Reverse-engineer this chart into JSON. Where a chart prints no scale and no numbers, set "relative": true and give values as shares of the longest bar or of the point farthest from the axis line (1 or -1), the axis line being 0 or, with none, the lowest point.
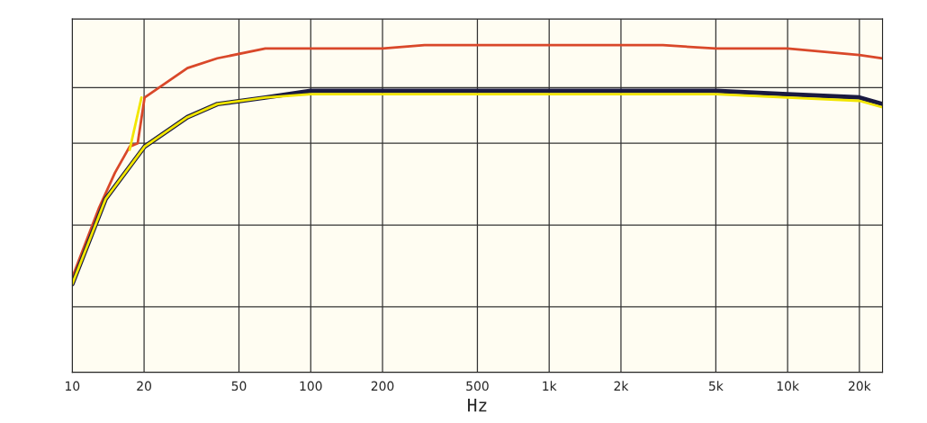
{
  "chart_data": {
    "type": "line",
    "relative": true,
    "xlabel": "Hz",
    "log": "x",
    "grid": true,
    "xlim": [
      10,
      25000
    ],
    "xticks": [
      10,
      20,
      50,
      100,
      200,
      500,
      {
        "value": 1000,
        "label": "1k"
      },
      {
        "value": 2000,
        "label": "2k"
      },
      {
        "value": 5000,
        "label": "5k"
      },
      {
        "value": 10000,
        "label": "10k"
      },
      {
        "value": 20000,
        "label": "20k"
      }
    ],
    "series": [
      {
        "color": "#d9482a",
        "x": [
          10,
          12.9,
          15.1,
          17.4,
          18.8,
          20.1,
          30.4,
          40.6,
          64.5,
          100,
          200,
          300,
          500,
          1000,
          2000,
          3000,
          5000,
          10000,
          20000,
          25000
        ],
        "values": [
          0.29,
          0.5,
          0.61,
          0.69,
          0.7,
          0.84,
          0.93,
          0.96,
          0.99,
          0.99,
          0.99,
          1.0,
          1.0,
          1.0,
          1.0,
          1.0,
          0.99,
          0.99,
          0.97,
          0.96
        ]
      },
      {
        "color": "#1a1a40",
        "x": [
          10,
          13.8,
          20.1,
          30.4,
          40.6,
          64.5,
          100,
          200,
          1000,
          5000,
          10000,
          20000,
          25000
        ],
        "values": [
          0.27,
          0.53,
          0.69,
          0.78,
          0.82,
          0.84,
          0.86,
          0.86,
          0.86,
          0.86,
          0.85,
          0.84,
          0.82
        ]
      },
      {
        "color": "#f2e600",
        "x": [
          10,
          13.8,
          20.1,
          30.4,
          40.6,
          64.5,
          100,
          200,
          1000,
          5000,
          10000,
          20000,
          25000
        ],
        "values": [
          0.27,
          0.53,
          0.69,
          0.78,
          0.82,
          0.84,
          0.85,
          0.85,
          0.85,
          0.85,
          0.84,
          0.83,
          0.81
        ]
      },
      {
        "color": "#f2e600",
        "x": [
          17.4,
          19.5
        ],
        "values": [
          0.68,
          0.84
        ]
      }
    ]
  }
}
